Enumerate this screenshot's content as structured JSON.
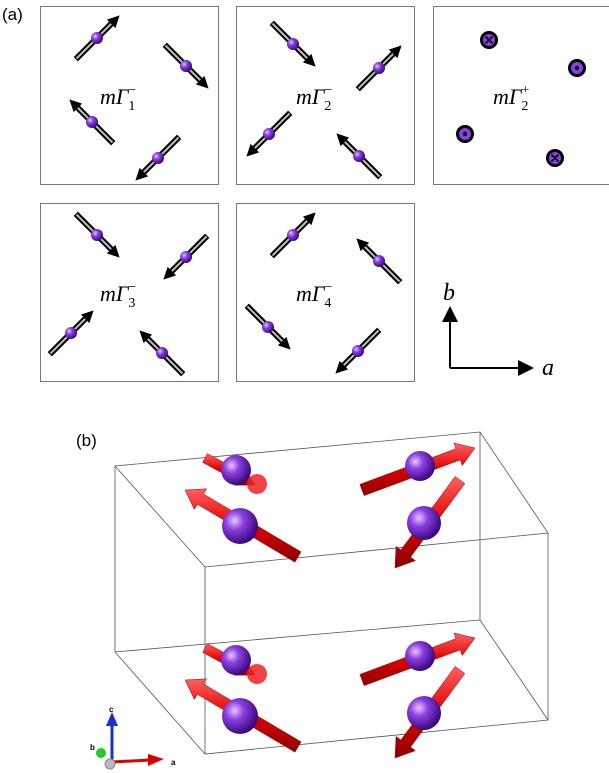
{
  "panel_a": {
    "label": "(a)",
    "panels": [
      {
        "name": "mΓ",
        "subscript": "1",
        "superscript": "−"
      },
      {
        "name": "mΓ",
        "subscript": "2",
        "superscript": "−"
      },
      {
        "name": "mΓ",
        "subscript": "2",
        "superscript": "+"
      },
      {
        "name": "mΓ",
        "subscript": "3",
        "superscript": "−"
      },
      {
        "name": "mΓ",
        "subscript": "4",
        "superscript": "−"
      }
    ],
    "axes": {
      "vertical": "b",
      "horizontal": "a"
    }
  },
  "panel_b": {
    "label": "(b)",
    "axes": {
      "c": "c",
      "b": "b",
      "a": "a"
    }
  }
}
